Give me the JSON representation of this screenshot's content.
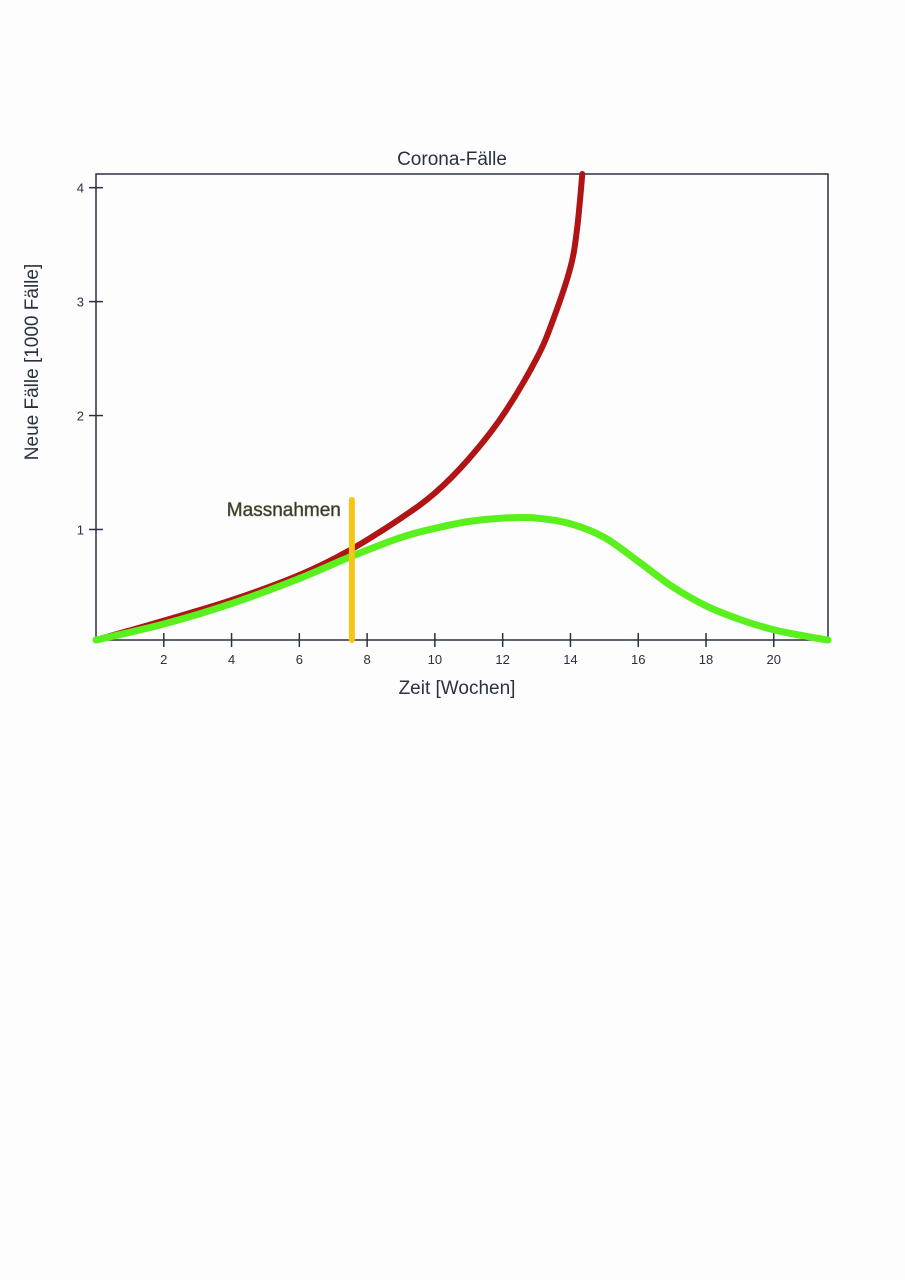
{
  "chart_data": {
    "type": "line",
    "title": "Corona-Fälle",
    "xlabel": "Zeit [Wochen]",
    "ylabel": "Neue Fälle [1000 Fälle]",
    "xlim": [
      0,
      21.6
    ],
    "ylim": [
      0.03,
      4.12
    ],
    "xticks": [
      2,
      4,
      6,
      8,
      10,
      12,
      14,
      16,
      18,
      20
    ],
    "yticks": [
      1,
      2,
      3,
      4
    ],
    "grid": false,
    "series": [
      {
        "color": "#b01414",
        "x": [
          0,
          2,
          4,
          6,
          7.5,
          9,
          10,
          11,
          12,
          13,
          13.5,
          14,
          14.2,
          14.35
        ],
        "y": [
          0.03,
          0.2,
          0.38,
          0.6,
          0.82,
          1.1,
          1.32,
          1.62,
          2.0,
          2.5,
          2.85,
          3.3,
          3.65,
          4.12
        ]
      },
      {
        "color": "#5af01e",
        "x": [
          0,
          2,
          4,
          6,
          7.5,
          9,
          10,
          11,
          12,
          13,
          14,
          15,
          16,
          17,
          18,
          19,
          20,
          21,
          21.6
        ],
        "y": [
          0.03,
          0.17,
          0.35,
          0.57,
          0.76,
          0.93,
          1.01,
          1.07,
          1.1,
          1.1,
          1.05,
          0.93,
          0.72,
          0.5,
          0.33,
          0.21,
          0.12,
          0.06,
          0.03
        ]
      }
    ],
    "annotations": [
      {
        "label": "Massnahmen",
        "x": 7.55,
        "y_from": 0.03,
        "y_to": 1.26,
        "color": "#f5c518",
        "label_color": "#9a8a1a"
      }
    ]
  }
}
